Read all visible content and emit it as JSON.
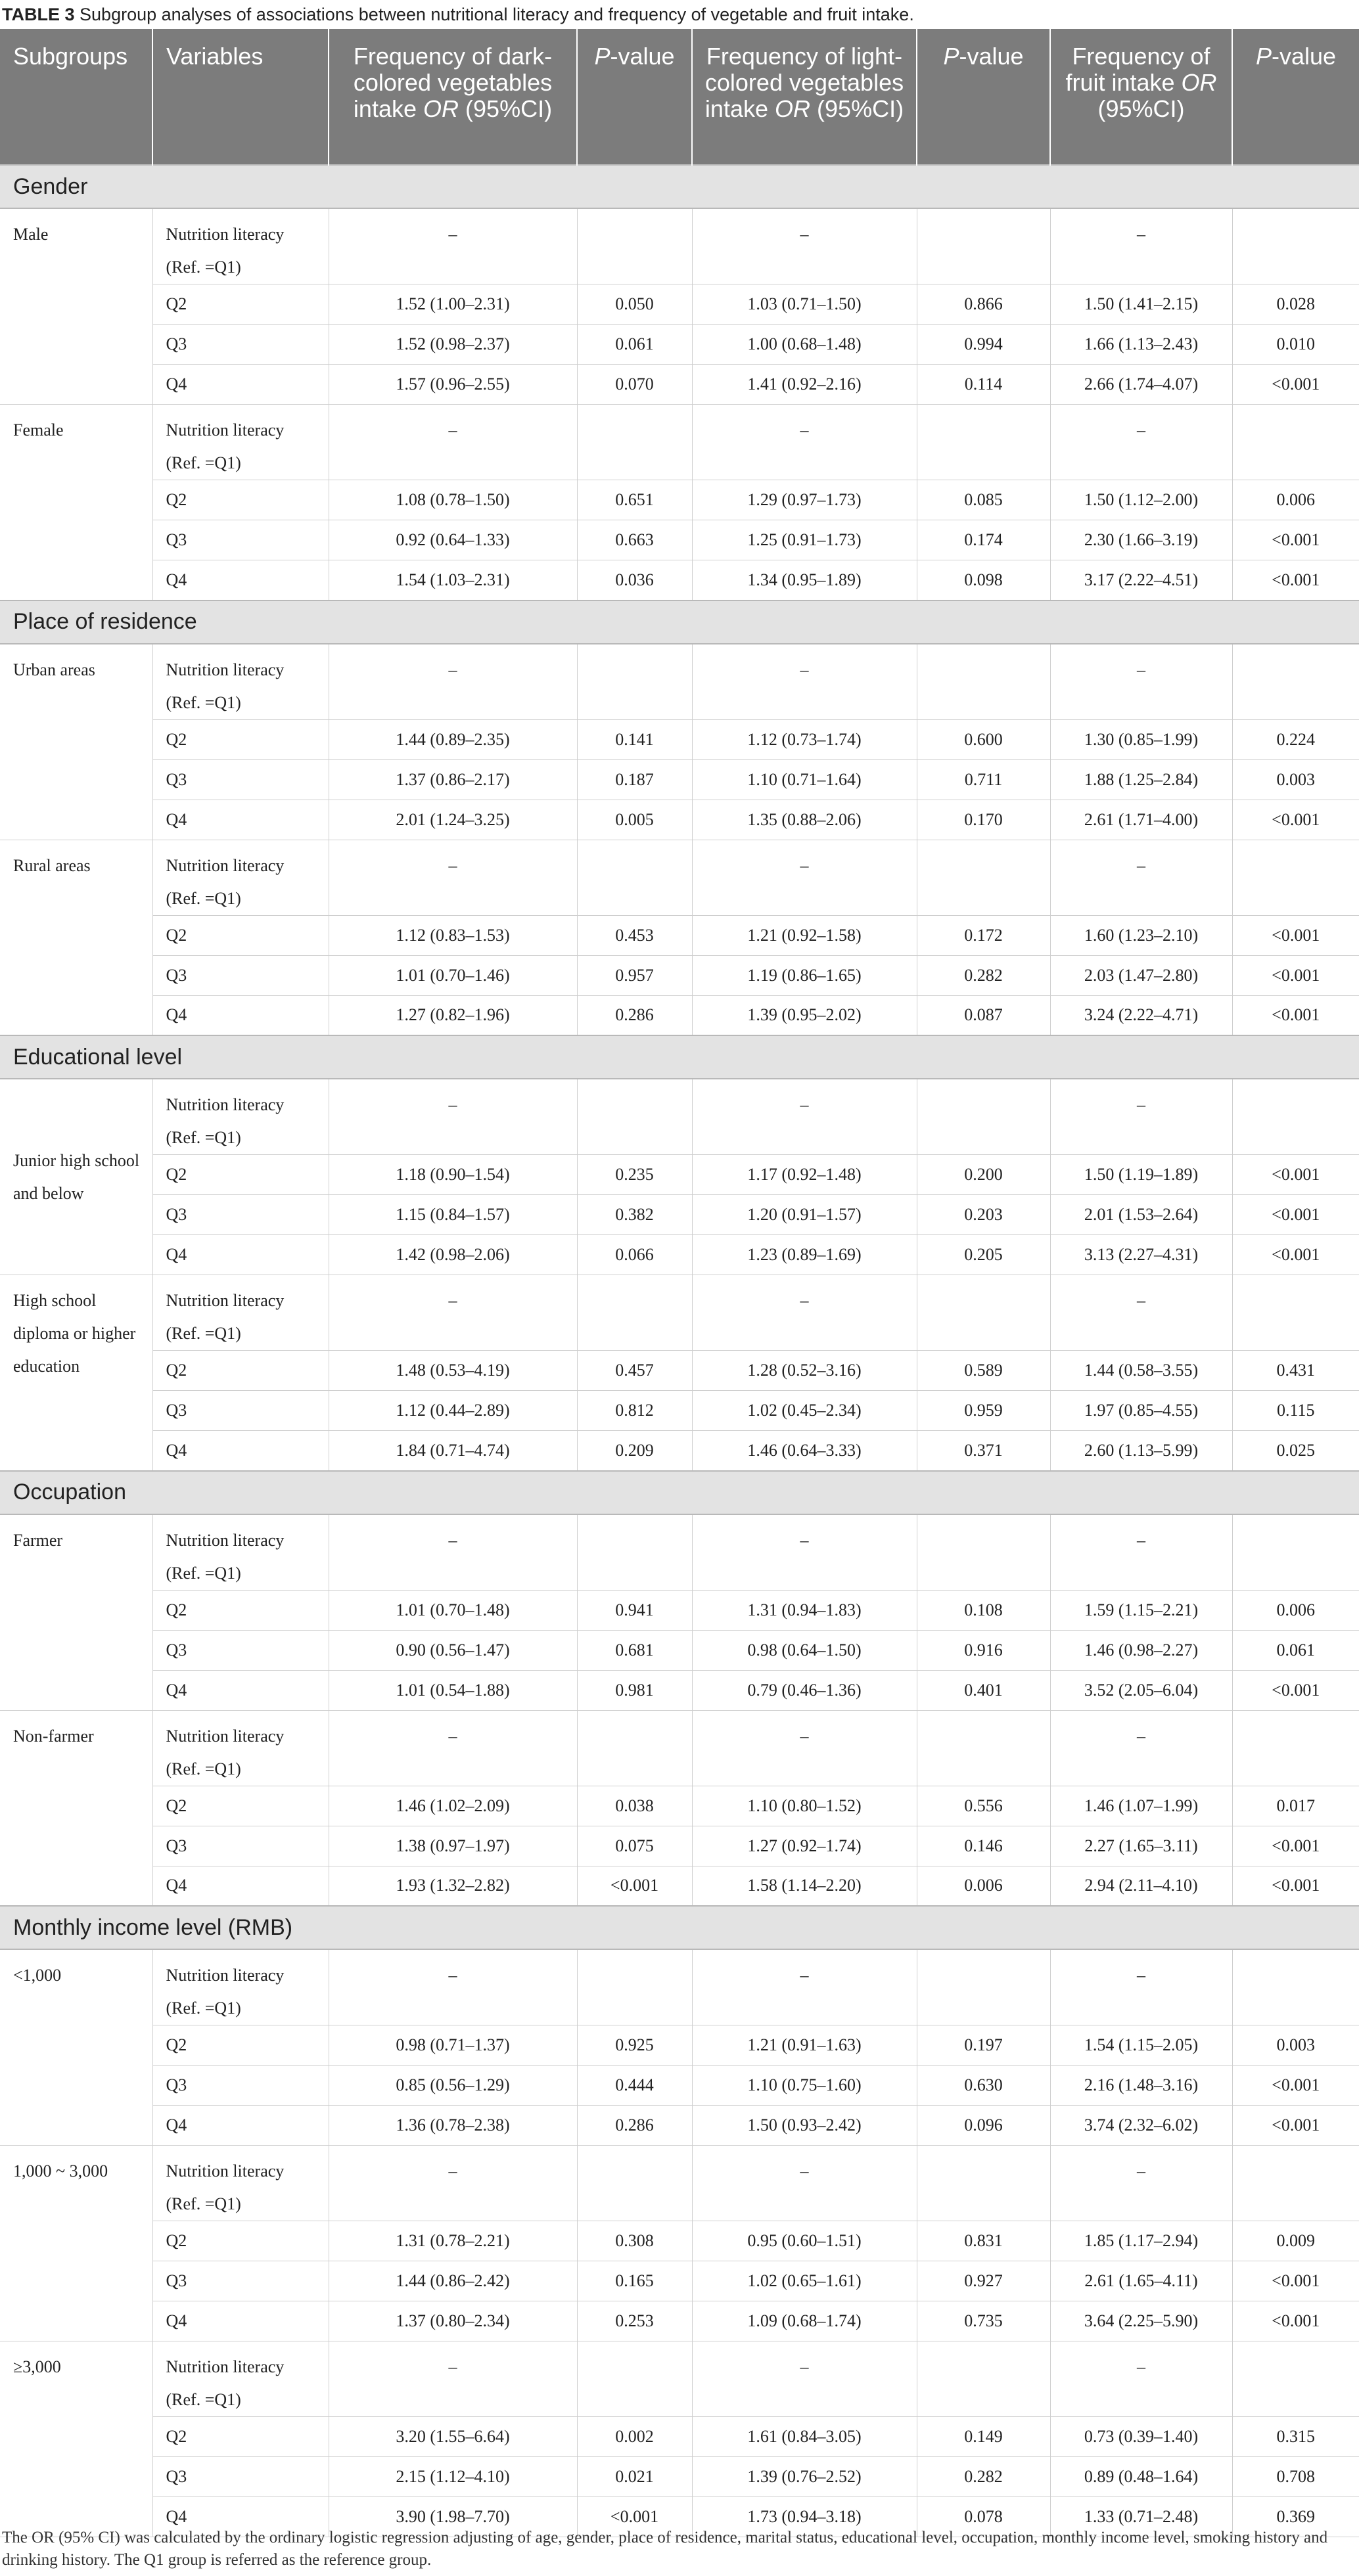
{
  "caption": {
    "label": "TABLE 3",
    "text": "Subgroup analyses of associations between nutritional literacy and frequency of vegetable and fruit intake."
  },
  "headers": {
    "subgroups": "Subgroups",
    "variables": "Variables",
    "dark_1": "Frequency of dark-colored vegetables intake",
    "dark_or": "OR",
    "dark_ci": "(95%CI)",
    "p_it": "P",
    "p_rest": "-value",
    "light_1": "Frequency of light-colored vegetables intake",
    "light_or": "OR",
    "light_ci": "(95%CI)",
    "fruit_1": "Frequency of fruit intake",
    "fruit_or": "OR",
    "fruit_ci": "(95%CI)"
  },
  "ref_label_1": "Nutrition literacy",
  "ref_label_2": "(Ref. =Q1)",
  "dash": "–",
  "sections": [
    {
      "title": "Gender",
      "groups": [
        {
          "name": "Male",
          "rows": [
            [
              "Q2",
              "1.52 (1.00–2.31)",
              "0.050",
              "1.03 (0.71–1.50)",
              "0.866",
              "1.50 (1.41–2.15)",
              "0.028"
            ],
            [
              "Q3",
              "1.52 (0.98–2.37)",
              "0.061",
              "1.00 (0.68–1.48)",
              "0.994",
              "1.66 (1.13–2.43)",
              "0.010"
            ],
            [
              "Q4",
              "1.57 (0.96–2.55)",
              "0.070",
              "1.41 (0.92–2.16)",
              "0.114",
              "2.66 (1.74–4.07)",
              "<0.001"
            ]
          ]
        },
        {
          "name": "Female",
          "rows": [
            [
              "Q2",
              "1.08 (0.78–1.50)",
              "0.651",
              "1.29 (0.97–1.73)",
              "0.085",
              "1.50 (1.12–2.00)",
              "0.006"
            ],
            [
              "Q3",
              "0.92 (0.64–1.33)",
              "0.663",
              "1.25 (0.91–1.73)",
              "0.174",
              "2.30 (1.66–3.19)",
              "<0.001"
            ],
            [
              "Q4",
              "1.54 (1.03–2.31)",
              "0.036",
              "1.34 (0.95–1.89)",
              "0.098",
              "3.17 (2.22–4.51)",
              "<0.001"
            ]
          ]
        }
      ]
    },
    {
      "title": "Place of residence",
      "groups": [
        {
          "name": "Urban areas",
          "rows": [
            [
              "Q2",
              "1.44 (0.89–2.35)",
              "0.141",
              "1.12 (0.73–1.74)",
              "0.600",
              "1.30 (0.85–1.99)",
              "0.224"
            ],
            [
              "Q3",
              "1.37 (0.86–2.17)",
              "0.187",
              "1.10 (0.71–1.64)",
              "0.711",
              "1.88 (1.25–2.84)",
              "0.003"
            ],
            [
              "Q4",
              "2.01 (1.24–3.25)",
              "0.005",
              "1.35 (0.88–2.06)",
              "0.170",
              "2.61 (1.71–4.00)",
              "<0.001"
            ]
          ]
        },
        {
          "name": "Rural areas",
          "rows": [
            [
              "Q2",
              "1.12 (0.83–1.53)",
              "0.453",
              "1.21 (0.92–1.58)",
              "0.172",
              "1.60 (1.23–2.10)",
              "<0.001"
            ],
            [
              "Q3",
              "1.01 (0.70–1.46)",
              "0.957",
              "1.19 (0.86–1.65)",
              "0.282",
              "2.03 (1.47–2.80)",
              "<0.001"
            ],
            [
              "Q4",
              "1.27 (0.82–1.96)",
              "0.286",
              "1.39 (0.95–2.02)",
              "0.087",
              "3.24 (2.22–4.71)",
              "<0.001"
            ]
          ]
        }
      ]
    },
    {
      "title": "Educational level",
      "groups": [
        {
          "name": "Junior high school and below",
          "mid": true,
          "rows": [
            [
              "Q2",
              "1.18 (0.90–1.54)",
              "0.235",
              "1.17 (0.92–1.48)",
              "0.200",
              "1.50 (1.19–1.89)",
              "<0.001"
            ],
            [
              "Q3",
              "1.15 (0.84–1.57)",
              "0.382",
              "1.20 (0.91–1.57)",
              "0.203",
              "2.01 (1.53–2.64)",
              "<0.001"
            ],
            [
              "Q4",
              "1.42 (0.98–2.06)",
              "0.066",
              "1.23 (0.89–1.69)",
              "0.205",
              "3.13 (2.27–4.31)",
              "<0.001"
            ]
          ]
        },
        {
          "name": "High school diploma or higher education",
          "rows": [
            [
              "Q2",
              "1.48 (0.53–4.19)",
              "0.457",
              "1.28 (0.52–3.16)",
              "0.589",
              "1.44 (0.58–3.55)",
              "0.431"
            ],
            [
              "Q3",
              "1.12 (0.44–2.89)",
              "0.812",
              "1.02 (0.45–2.34)",
              "0.959",
              "1.97 (0.85–4.55)",
              "0.115"
            ],
            [
              "Q4",
              "1.84 (0.71–4.74)",
              "0.209",
              "1.46 (0.64–3.33)",
              "0.371",
              "2.60 (1.13–5.99)",
              "0.025"
            ]
          ]
        }
      ]
    },
    {
      "title": "Occupation",
      "groups": [
        {
          "name": "Farmer",
          "rows": [
            [
              "Q2",
              "1.01 (0.70–1.48)",
              "0.941",
              "1.31 (0.94–1.83)",
              "0.108",
              "1.59 (1.15–2.21)",
              "0.006"
            ],
            [
              "Q3",
              "0.90 (0.56–1.47)",
              "0.681",
              "0.98 (0.64–1.50)",
              "0.916",
              "1.46 (0.98–2.27)",
              "0.061"
            ],
            [
              "Q4",
              "1.01 (0.54–1.88)",
              "0.981",
              "0.79 (0.46–1.36)",
              "0.401",
              "3.52 (2.05–6.04)",
              "<0.001"
            ]
          ]
        },
        {
          "name": "Non-farmer",
          "rows": [
            [
              "Q2",
              "1.46 (1.02–2.09)",
              "0.038",
              "1.10 (0.80–1.52)",
              "0.556",
              "1.46 (1.07–1.99)",
              "0.017"
            ],
            [
              "Q3",
              "1.38 (0.97–1.97)",
              "0.075",
              "1.27 (0.92–1.74)",
              "0.146",
              "2.27 (1.65–3.11)",
              "<0.001"
            ],
            [
              "Q4",
              "1.93 (1.32–2.82)",
              "<0.001",
              "1.58 (1.14–2.20)",
              "0.006",
              "2.94 (2.11–4.10)",
              "<0.001"
            ]
          ]
        }
      ]
    },
    {
      "title": "Monthly income level (RMB)",
      "groups": [
        {
          "name": "<1,000",
          "rows": [
            [
              "Q2",
              "0.98 (0.71–1.37)",
              "0.925",
              "1.21 (0.91–1.63)",
              "0.197",
              "1.54 (1.15–2.05)",
              "0.003"
            ],
            [
              "Q3",
              "0.85 (0.56–1.29)",
              "0.444",
              "1.10 (0.75–1.60)",
              "0.630",
              "2.16 (1.48–3.16)",
              "<0.001"
            ],
            [
              "Q4",
              "1.36 (0.78–2.38)",
              "0.286",
              "1.50 (0.93–2.42)",
              "0.096",
              "3.74 (2.32–6.02)",
              "<0.001"
            ]
          ]
        },
        {
          "name": "1,000 ~ 3,000",
          "rows": [
            [
              "Q2",
              "1.31 (0.78–2.21)",
              "0.308",
              "0.95 (0.60–1.51)",
              "0.831",
              "1.85 (1.17–2.94)",
              "0.009"
            ],
            [
              "Q3",
              "1.44 (0.86–2.42)",
              "0.165",
              "1.02 (0.65–1.61)",
              "0.927",
              "2.61 (1.65–4.11)",
              "<0.001"
            ],
            [
              "Q4",
              "1.37 (0.80–2.34)",
              "0.253",
              "1.09 (0.68–1.74)",
              "0.735",
              "3.64 (2.25–5.90)",
              "<0.001"
            ]
          ]
        },
        {
          "name": "≥3,000",
          "rows": [
            [
              "Q2",
              "3.20 (1.55–6.64)",
              "0.002",
              "1.61 (0.84–3.05)",
              "0.149",
              "0.73 (0.39–1.40)",
              "0.315"
            ],
            [
              "Q3",
              "2.15 (1.12–4.10)",
              "0.021",
              "1.39 (0.76–2.52)",
              "0.282",
              "0.89 (0.48–1.64)",
              "0.708"
            ],
            [
              "Q4",
              "3.90 (1.98–7.70)",
              "<0.001",
              "1.73 (0.94–3.18)",
              "0.078",
              "1.33 (0.71–2.48)",
              "0.369"
            ]
          ]
        }
      ]
    }
  ],
  "footnote": "The OR (95% CI) was calculated by the ordinary logistic regression adjusting of age, gender, place of residence, marital status, educational level, occupation, monthly income level, smoking history and drinking history. The Q1 group is referred as the reference group."
}
